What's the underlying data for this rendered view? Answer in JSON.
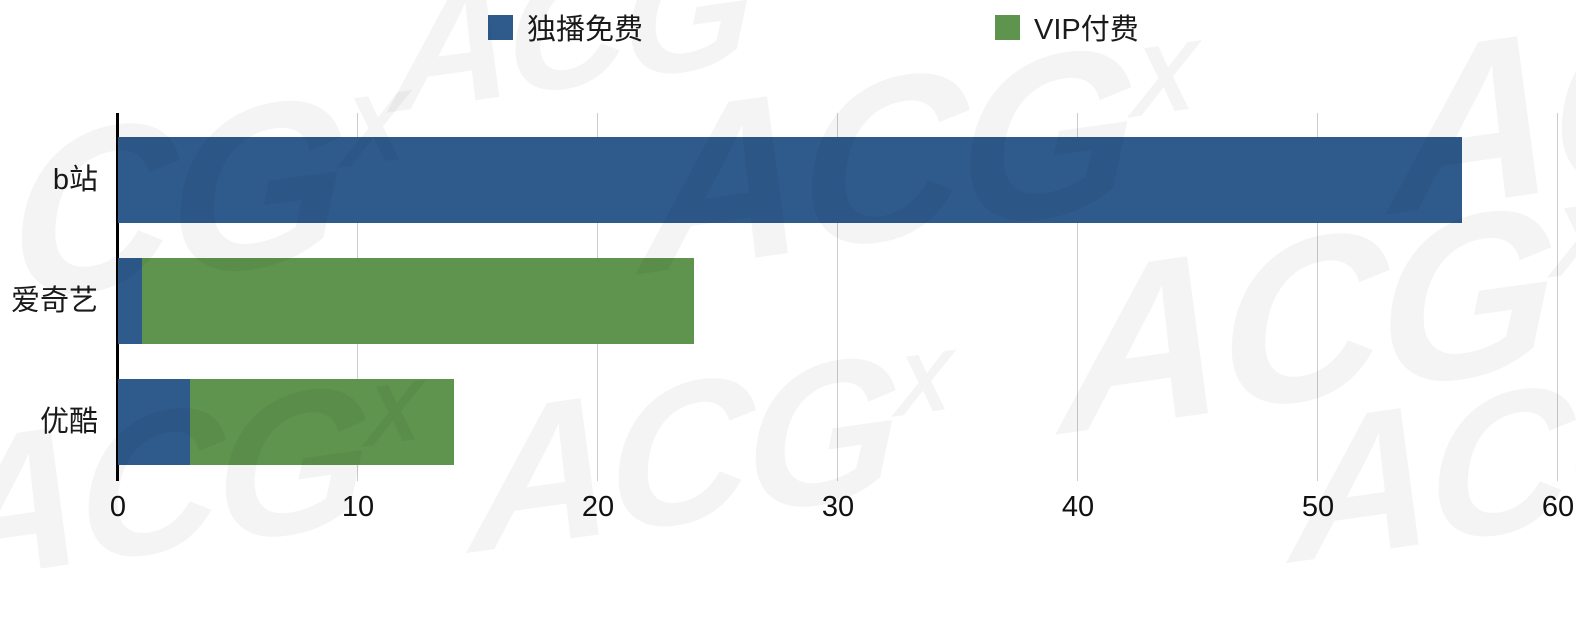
{
  "watermark": {
    "text": "ACG",
    "sup": "X"
  },
  "chart_data": {
    "type": "bar",
    "orientation": "horizontal",
    "stacked": true,
    "title": "",
    "categories": [
      "b站",
      "爱奇艺",
      "优酷"
    ],
    "series": [
      {
        "name": "独播免费",
        "color": "#2F5A8C",
        "values": [
          56,
          1,
          3
        ]
      },
      {
        "name": "VIP付费",
        "color": "#5E944D",
        "values": [
          0,
          23,
          11
        ]
      }
    ],
    "xlim": [
      0,
      60
    ],
    "x_ticks": [
      0,
      10,
      20,
      30,
      40,
      50,
      60
    ],
    "grid": true,
    "legend_position": "top",
    "xlabel": "",
    "ylabel": ""
  }
}
